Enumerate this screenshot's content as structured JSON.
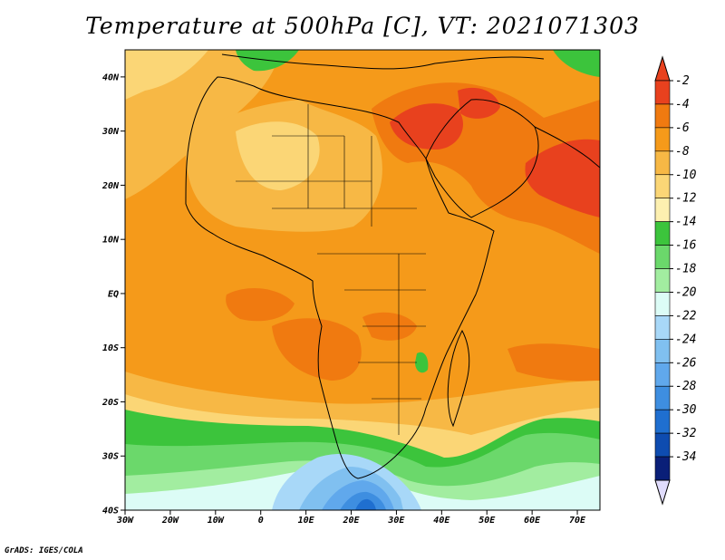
{
  "title": "Temperature at 500hPa [C], VT: 2021071303",
  "credit": "GrADS: IGES/COLA",
  "map": {
    "lon_range": [
      -30,
      75
    ],
    "lat_range": [
      -40,
      45
    ],
    "lon_ticks": [
      "30W",
      "20W",
      "10W",
      "0",
      "10E",
      "20E",
      "30E",
      "40E",
      "50E",
      "60E",
      "70E"
    ],
    "lat_ticks": [
      "40N",
      "30N",
      "20N",
      "10N",
      "EQ",
      "10S",
      "20S",
      "30S",
      "40S"
    ],
    "lon_tick_values": [
      -30,
      -20,
      -10,
      0,
      10,
      20,
      30,
      40,
      50,
      60,
      70
    ],
    "lat_tick_values": [
      40,
      30,
      20,
      10,
      0,
      -10,
      -20,
      -30,
      -40
    ]
  },
  "colorbar": {
    "labels": [
      "-2",
      "-4",
      "-6",
      "-8",
      "-10",
      "-12",
      "-14",
      "-16",
      "-18",
      "-20",
      "-22",
      "-24",
      "-26",
      "-28",
      "-30",
      "-32",
      "-34"
    ],
    "colors": [
      "#e8411e",
      "#f07a10",
      "#f59a1a",
      "#f7b845",
      "#fbd676",
      "#fdf0b0",
      "#3cc43c",
      "#6bd86b",
      "#a2eda0",
      "#dcfcf6",
      "#a8d8f8",
      "#80c0f0",
      "#60a8ec",
      "#3e8ee0",
      "#1f6fd0",
      "#0e4cb0",
      "#0a1f78"
    ],
    "top_arrow_color": "#e8411e",
    "bottom_arrow_color": "#e0dcfc"
  }
}
